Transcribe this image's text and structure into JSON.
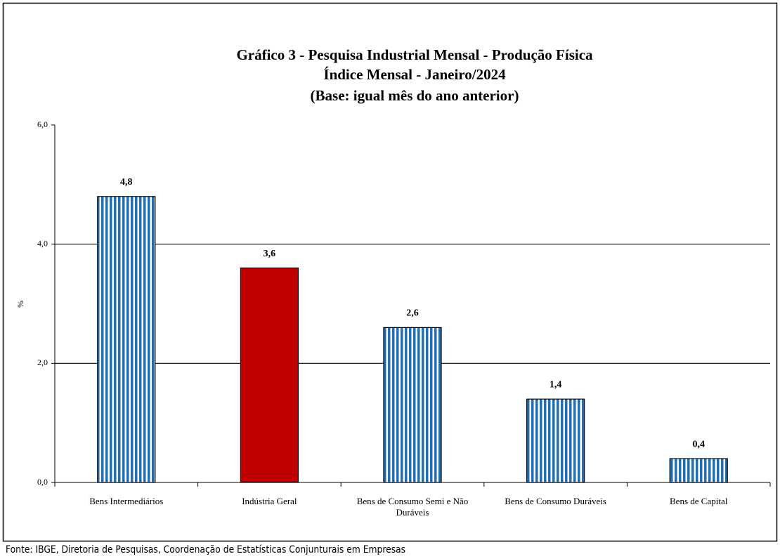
{
  "chart_data": {
    "type": "bar",
    "title": [
      "Gráfico 3 - Pesquisa Industrial Mensal - Produção Física",
      "Índice Mensal - Janeiro/2024",
      "(Base: igual mês do ano anterior)"
    ],
    "y_label": "%",
    "categories": [
      "Bens Intermediários",
      "Indústria Geral",
      "Bens de Consumo Semi e Não Duráveis",
      "Bens de Consumo Duráveis",
      "Bens de Capital"
    ],
    "values": [
      4.8,
      3.6,
      2.6,
      1.4,
      0.4
    ],
    "value_labels": [
      "4,8",
      "3,6",
      "2,6",
      "1,4",
      "0,4"
    ],
    "colors": [
      "#1f6fb5",
      "#c00000",
      "#1f6fb5",
      "#1f6fb5",
      "#1f6fb5"
    ],
    "bar_patterns": [
      "stripes",
      "solid",
      "stripes",
      "stripes",
      "stripes"
    ],
    "ylim": [
      0,
      6
    ],
    "yticks": [
      {
        "value": 0,
        "label": "0,0"
      },
      {
        "value": 2,
        "label": "2,0"
      },
      {
        "value": 4,
        "label": "4,0"
      },
      {
        "value": 6,
        "label": "6,0"
      }
    ],
    "grid": true,
    "source": "Fonte: IBGE, Diretoria de Pesquisas, Coordenação de Estatísticas Conjunturais em Empresas"
  }
}
